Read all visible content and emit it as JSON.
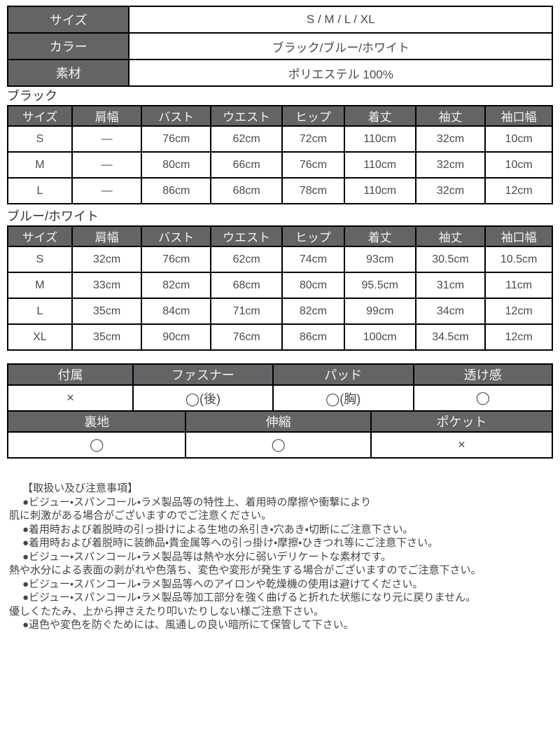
{
  "colors": {
    "header_bg": "#626466",
    "header_text": "#f2f2f2",
    "border": "#000000",
    "value_text": "#4a4a4a",
    "label_text": "#333333",
    "note_text": "#444444",
    "page_bg": "#ffffff"
  },
  "spec_table": {
    "row_header": true,
    "rows": [
      [
        "サイズ",
        "S / M / L / XL"
      ],
      [
        "カラー",
        "ブラック/ブルー/ホワイト"
      ],
      [
        "素材",
        "ポリエステル 100%"
      ]
    ]
  },
  "black": {
    "label": "ブラック",
    "table": {
      "headers": [
        "サイズ",
        "肩幅",
        "バスト",
        "ウエスト",
        "ヒップ",
        "着丈",
        "袖丈",
        "袖口幅"
      ],
      "rows": [
        [
          "S",
          "—",
          "76cm",
          "62cm",
          "72cm",
          "110cm",
          "32cm",
          "10cm"
        ],
        [
          "M",
          "—",
          "80cm",
          "66cm",
          "76cm",
          "110cm",
          "32cm",
          "10cm"
        ],
        [
          "L",
          "—",
          "86cm",
          "68cm",
          "78cm",
          "110cm",
          "32cm",
          "12cm"
        ]
      ]
    }
  },
  "blue_white": {
    "label": "ブルー/ホワイト",
    "table": {
      "headers": [
        "サイズ",
        "肩幅",
        "バスト",
        "ウエスト",
        "ヒップ",
        "着丈",
        "袖丈",
        "袖口幅"
      ],
      "rows": [
        [
          "S",
          "32cm",
          "76cm",
          "62cm",
          "74cm",
          "93cm",
          "30.5cm",
          "10.5cm"
        ],
        [
          "M",
          "33cm",
          "82cm",
          "68cm",
          "80cm",
          "95.5cm",
          "31cm",
          "11cm"
        ],
        [
          "L",
          "35cm",
          "84cm",
          "71cm",
          "82cm",
          "99cm",
          "34cm",
          "12cm"
        ],
        [
          "XL",
          "35cm",
          "90cm",
          "76cm",
          "86cm",
          "100cm",
          "34.5cm",
          "12cm"
        ]
      ]
    }
  },
  "features_row1": {
    "headers": [
      "付属",
      "ファスナー",
      "パッド",
      "透け感"
    ],
    "rows": [
      [
        "×",
        "◯(後)",
        "◯(胸)",
        "◯"
      ]
    ]
  },
  "features_row2": {
    "headers": [
      "裏地",
      "伸縮",
      "ポケット"
    ],
    "rows": [
      [
        "◯",
        "◯",
        "×"
      ]
    ]
  },
  "care": {
    "title": "【取扱い及び注意事項】",
    "lines": [
      {
        "text": "●ビジュー・スパンコール・ラメ製品等の特性上、着用時の摩擦や衝撃により",
        "indent": true
      },
      {
        "text": "肌に刺激がある場合がございますのでご注意ください。",
        "indent": false
      },
      {
        "text": "●着用時および着脱時の引っ掛けによる生地の糸引き・穴あき・切断にご注意下さい。",
        "indent": true
      },
      {
        "text": "●着用時および着脱時に装飾品・貴金属等への引っ掛け・摩擦・ひきつれ等にご注意下さい。",
        "indent": true
      },
      {
        "text": "●ビジュー・スパンコール・ラメ製品等は熱や水分に弱いデリケートな素材です。",
        "indent": true
      },
      {
        "text": "熱や水分による表面の剥がれや色落ち、変色や変形が発生する場合がございますのでご注意下さい。",
        "indent": false
      },
      {
        "text": "●ビジュー・スパンコール・ラメ製品等へのアイロンや乾燥機の使用は避けてください。",
        "indent": true
      },
      {
        "text": "●ビジュー・スパンコール・ラメ製品等加工部分を強く曲げると折れた状態になり元に戻りません。",
        "indent": true
      },
      {
        "text": "優しくたたみ、上から押さえたり叩いたりしない様ご注意下さい。",
        "indent": false
      },
      {
        "text": "●退色や変色を防ぐためには、風通しの良い暗所にて保管して下さい。",
        "indent": true
      }
    ]
  }
}
